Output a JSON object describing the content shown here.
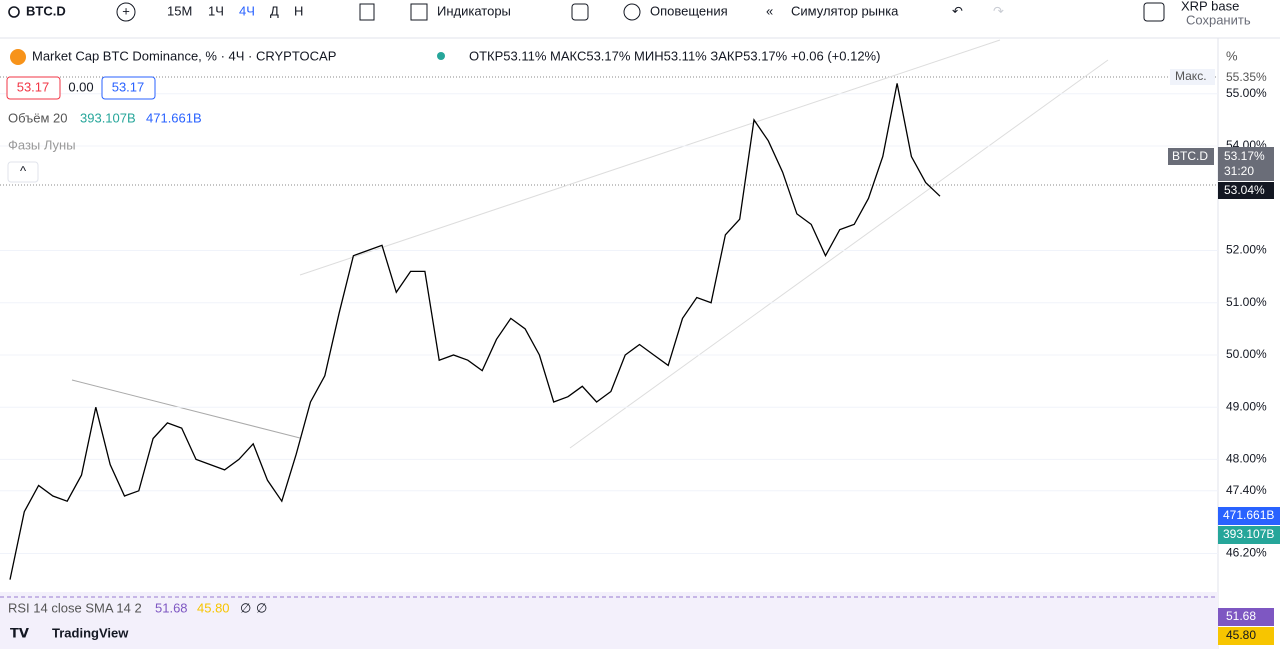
{
  "toolbar": {
    "symbol": "BTC.D",
    "intervals": [
      "15М",
      "1Ч",
      "4Ч",
      "Д",
      "Н"
    ],
    "indicators": "Индикаторы",
    "alerts": "Оповещения",
    "replay": "Симулятор рынка",
    "layout_name": "XRP base",
    "save": "Сохранить"
  },
  "legend": {
    "title": "Market Cap BTC Dominance, % · 4Ч · CRYPTOCAP",
    "ohlc": "ОТКР53.11% МАКС53.17% МИН53.11% ЗАКР53.17% +0.06 (+0.12%)",
    "sell": "53.17",
    "spread": "0.00",
    "buy": "53.17",
    "volume_label": "Объём 20",
    "volume_values": [
      "393.107B",
      "471.661B"
    ],
    "moon": "Фазы Луны"
  },
  "chart_data": {
    "type": "line",
    "axis_unit": "%",
    "series": [
      {
        "name": "BTC.D",
        "color": "#000000",
        "values": [
          45.7,
          47.0,
          47.5,
          47.3,
          47.2,
          47.7,
          49.0,
          47.9,
          47.3,
          47.4,
          48.4,
          48.7,
          48.6,
          48.0,
          47.9,
          47.8,
          48.0,
          48.3,
          47.6,
          47.2,
          48.1,
          49.1,
          49.6,
          50.8,
          51.9,
          52.0,
          52.1,
          51.2,
          51.6,
          51.6,
          49.9,
          50.0,
          49.9,
          49.7,
          50.3,
          50.7,
          50.5,
          50.0,
          49.1,
          49.2,
          49.4,
          49.1,
          49.3,
          50.0,
          50.2,
          50.0,
          49.8,
          50.7,
          51.1,
          51.0,
          52.3,
          52.6,
          54.5,
          54.1,
          53.5,
          52.7,
          52.5,
          51.9,
          52.4,
          52.5,
          53.0,
          53.8,
          55.2,
          53.8,
          53.3,
          53.04
        ]
      }
    ],
    "ylim": [
      45.5,
      56.03
    ],
    "yticks": [
      {
        "value": 55,
        "label": "55.00%"
      },
      {
        "value": 54,
        "label": "54.00%"
      },
      {
        "value": 52,
        "label": "52.00%"
      },
      {
        "value": 51,
        "label": "51.00%"
      },
      {
        "value": 50,
        "label": "50.00%"
      },
      {
        "value": 49,
        "label": "49.00%"
      },
      {
        "value": 48,
        "label": "48.00%"
      },
      {
        "value": 47.4,
        "label": "47.40%"
      },
      {
        "value": 46.2,
        "label": "46.20%"
      }
    ],
    "grid": true
  },
  "price_tags": {
    "last": "53.17%",
    "countdown": "31:20",
    "close": "53.04%",
    "max_label": "Макс.",
    "max": "55.35%",
    "vol_ma": "471.661B",
    "vol": "393.107B"
  },
  "rsi": {
    "legend": "RSI 14 close SMA 14 2",
    "legend_values": [
      "51.68",
      "45.80",
      "∅",
      "∅"
    ],
    "tags": [
      "51.68",
      "45.80"
    ]
  },
  "brand": "TradingView"
}
